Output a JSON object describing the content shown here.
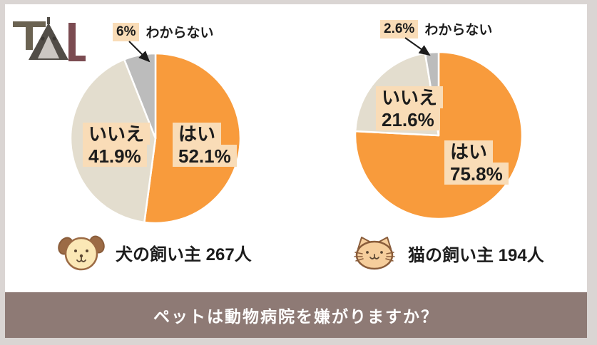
{
  "logo": {
    "name": "TAL"
  },
  "banner": {
    "text": "ペットは動物病院を嫌がりますか？"
  },
  "colors": {
    "yes_orange": "#F89B3C",
    "no_beige": "#E3DDCE",
    "unknown_gray": "#BCBCBC",
    "label_highlight": "#F9DCB7",
    "banner_bg": "#8E7A75",
    "frame_border": "#DAD5D3",
    "text_ink": "#1C1C1C",
    "banner_text": "#FFFFFF"
  },
  "chart_data": [
    {
      "type": "pie",
      "id": "dog-owners",
      "caption": "犬の飼い主 267人",
      "respondents_label": "267人",
      "labels": [
        "はい",
        "いいえ",
        "わからない"
      ],
      "values": [
        52.1,
        41.9,
        6.0
      ],
      "value_labels": [
        "52.1%",
        "41.9%",
        "6%"
      ],
      "colors": [
        "#F89B3C",
        "#E3DDCE",
        "#BCBCBC"
      ],
      "slice_ids": [
        "yes",
        "no",
        "unknown"
      ],
      "start_angle_deg": 0,
      "direction": "clockwise",
      "legend_icon": "dog-icon"
    },
    {
      "type": "pie",
      "id": "cat-owners",
      "caption": "猫の飼い主 194人",
      "respondents_label": "194人",
      "labels": [
        "はい",
        "いいえ",
        "わからない"
      ],
      "values": [
        75.8,
        21.6,
        2.6
      ],
      "value_labels": [
        "75.8%",
        "21.6%",
        "2.6%"
      ],
      "colors": [
        "#F89B3C",
        "#E3DDCE",
        "#BCBCBC"
      ],
      "slice_ids": [
        "yes",
        "no",
        "unknown"
      ],
      "start_angle_deg": 0,
      "direction": "clockwise",
      "legend_icon": "cat-icon"
    }
  ]
}
